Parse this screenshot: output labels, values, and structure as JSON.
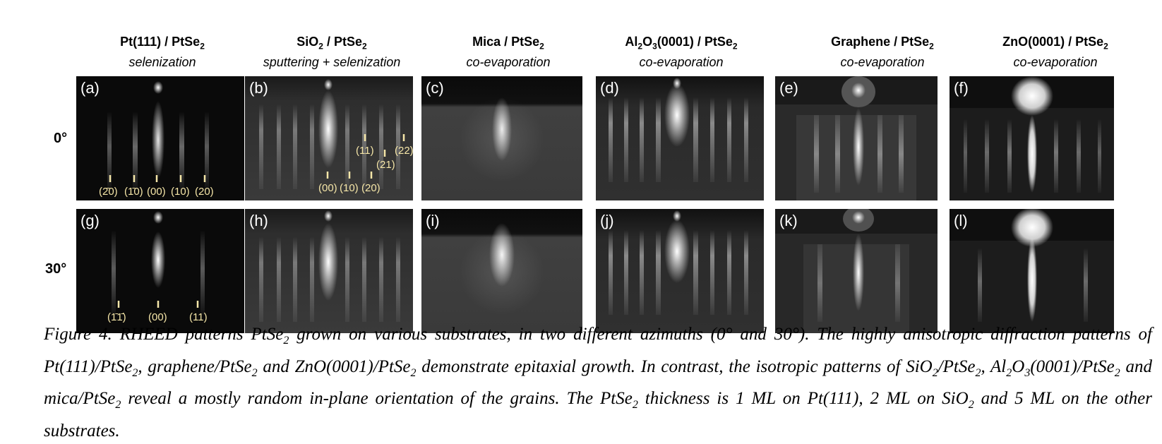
{
  "columns": [
    {
      "sub_a": "Pt(111) / PtSe",
      "sub_b": "2",
      "sub_c": "",
      "method": "selenization"
    },
    {
      "sub_a": "SiO",
      "sub_b": "2",
      "sub_c": " / PtSe",
      "sub_d": "2",
      "method": "sputtering + selenization"
    },
    {
      "sub_a": "Mica / PtSe",
      "sub_b": "2",
      "sub_c": "",
      "method": "co-evaporation"
    },
    {
      "sub_a": "Al",
      "sub_b": "2",
      "sub_c": "O",
      "sub_d": "3",
      "sub_e": "(0001) / PtSe",
      "sub_f": "2",
      "method": "co-evaporation"
    },
    {
      "sub_a": "Graphene / PtSe",
      "sub_b": "2",
      "sub_c": "",
      "method": "co-evaporation"
    },
    {
      "sub_a": "ZnO(0001) / PtSe",
      "sub_b": "2",
      "sub_c": "",
      "method": "co-evaporation"
    }
  ],
  "rows": [
    "0°",
    "30°"
  ],
  "panel_letters": [
    "(a)",
    "(b)",
    "(c)",
    "(d)",
    "(e)",
    "(f)",
    "(g)",
    "(h)",
    "(i)",
    "(j)",
    "(k)",
    "(l)"
  ],
  "index_labels": {
    "a": [
      "(2̄0)",
      "(1̄0)",
      "(00)",
      "(10)",
      "(20)"
    ],
    "b": [
      "(00)",
      "(10)",
      "(20)",
      "(11)",
      "(21)",
      "(22)"
    ],
    "g": [
      "(1̄1̄)",
      "(00)",
      "(11)"
    ]
  },
  "caption": {
    "p1": "Figure 4. RHEED patterns PtSe",
    "p2": "2",
    "p3": " grown on various substrates, in two different azimuths (0° and 30°). The highly anisotropic diffraction patterns of Pt(111)/PtSe",
    "p4": "2",
    "p5": ", graphene/PtSe",
    "p6": "2",
    "p7": " and ZnO(0001)/PtSe",
    "p8": "2",
    "p9": " demonstrate epitaxial growth. In contrast, the isotropic patterns of SiO",
    "p10": "2",
    "p11": "/PtSe",
    "p12": "2",
    "p13": ", Al",
    "p14": "2",
    "p15": "O",
    "p16": "3",
    "p17": "(0001)/PtSe",
    "p18": "2",
    "p19": " and mica/PtSe",
    "p20": "2",
    "p21": " reveal a mostly random in-plane orientation of the grains. The PtSe",
    "p22": "2",
    "p23": " thickness is 1 ML on Pt(111), 2 ML on SiO",
    "p24": "2",
    "p25": " and 5 ML on the other substrates."
  }
}
